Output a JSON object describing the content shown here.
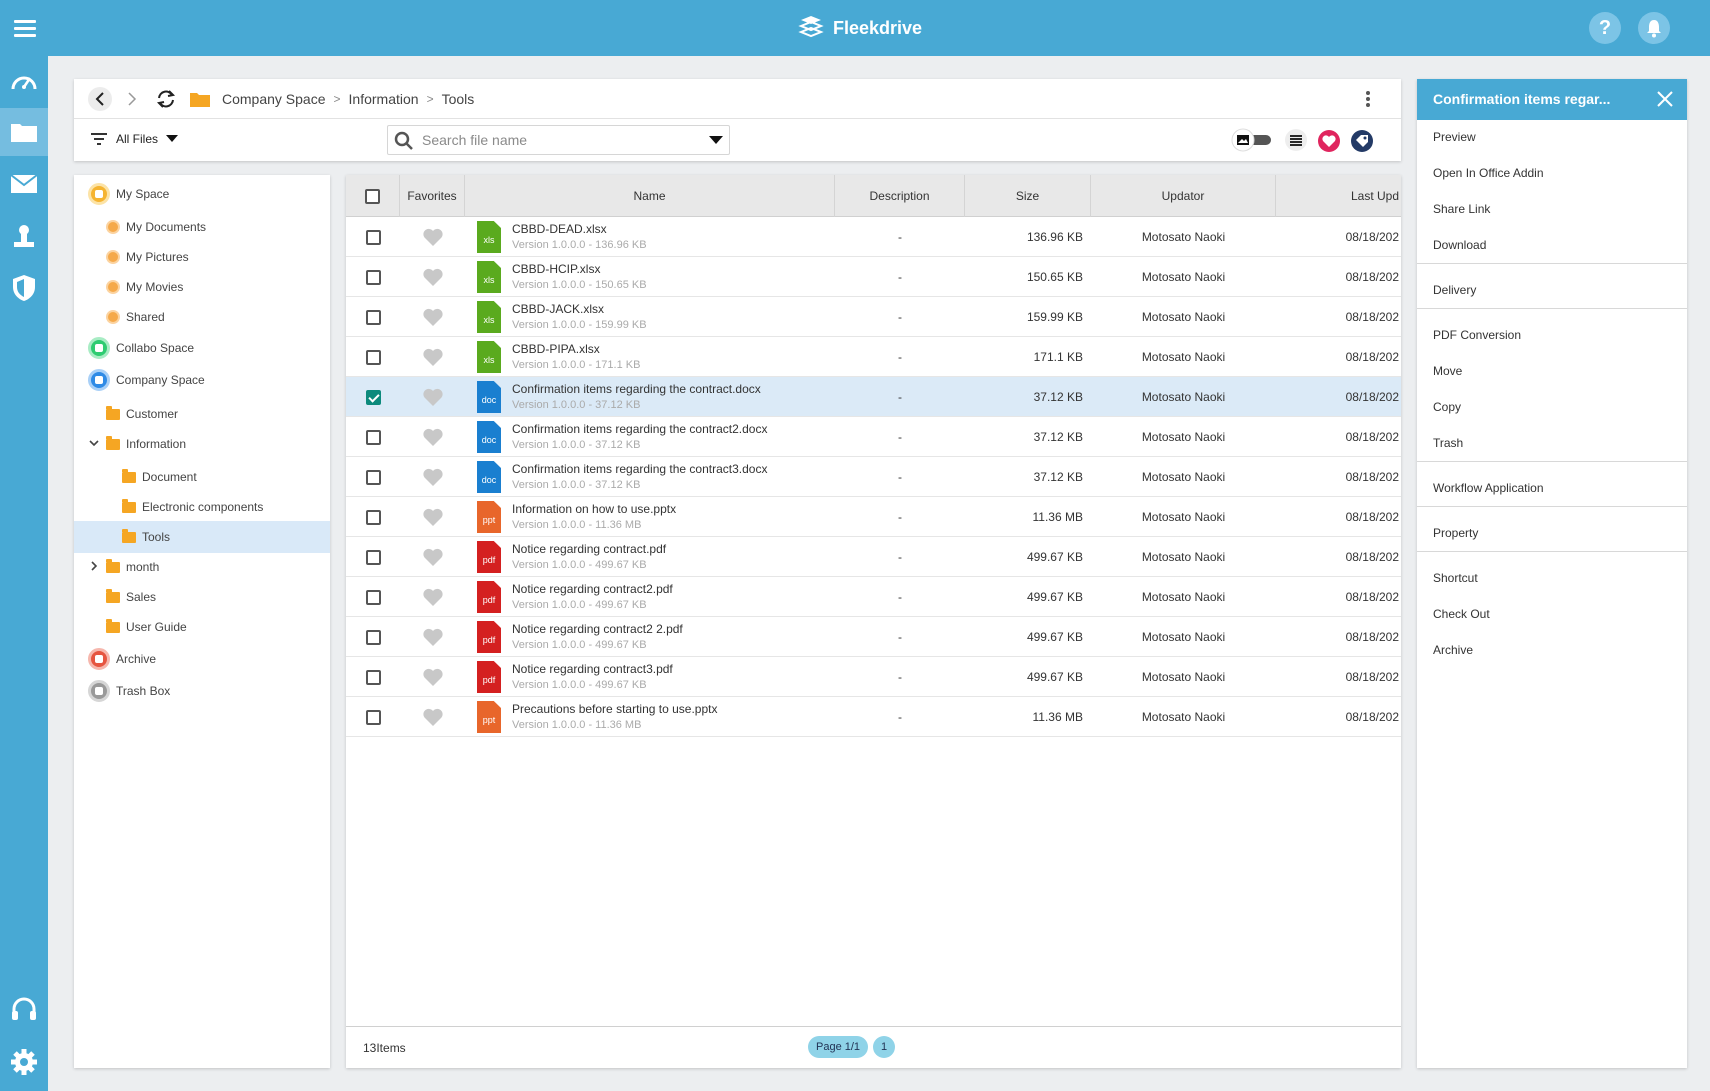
{
  "app": {
    "name": "Fleekdrive"
  },
  "breadcrumb": [
    "Company Space",
    "Information",
    "Tools"
  ],
  "filter": {
    "label": "All Files"
  },
  "search": {
    "placeholder": "Search file name"
  },
  "tree": [
    {
      "label": "My Space",
      "kind": "space-myspace",
      "level": 0
    },
    {
      "label": "My Documents",
      "kind": "personal",
      "level": 1
    },
    {
      "label": "My Pictures",
      "kind": "personal",
      "level": 1
    },
    {
      "label": "My Movies",
      "kind": "personal",
      "level": 1
    },
    {
      "label": "Shared",
      "kind": "personal",
      "level": 1
    },
    {
      "label": "Collabo Space",
      "kind": "space-collabo",
      "level": 0
    },
    {
      "label": "Company Space",
      "kind": "space-company",
      "level": 0
    },
    {
      "label": "Customer",
      "kind": "folder",
      "level": 1
    },
    {
      "label": "Information",
      "kind": "folder",
      "level": 1,
      "expanded": true
    },
    {
      "label": "Document",
      "kind": "folder",
      "level": 2
    },
    {
      "label": "Electronic components",
      "kind": "folder",
      "level": 2
    },
    {
      "label": "Tools",
      "kind": "folder",
      "level": 2,
      "selected": true
    },
    {
      "label": "month",
      "kind": "folder",
      "level": 1,
      "collapsed": true
    },
    {
      "label": "Sales",
      "kind": "folder",
      "level": 1
    },
    {
      "label": "User Guide",
      "kind": "folder",
      "level": 1
    },
    {
      "label": "Archive",
      "kind": "space-archive",
      "level": 0
    },
    {
      "label": "Trash Box",
      "kind": "space-trash",
      "level": 0
    }
  ],
  "table": {
    "columns": [
      "Favorites",
      "Name",
      "Description",
      "Size",
      "Updator",
      "Last Upd"
    ],
    "rows": [
      {
        "name": "CBBD-DEAD.xlsx",
        "version": "Version 1.0.0.0 - 136.96 KB",
        "type": "xls",
        "description": "-",
        "size": "136.96 KB",
        "updator": "Motosato Naoki",
        "updated": "08/18/202",
        "checked": false
      },
      {
        "name": "CBBD-HCIP.xlsx",
        "version": "Version 1.0.0.0 - 150.65 KB",
        "type": "xls",
        "description": "-",
        "size": "150.65 KB",
        "updator": "Motosato Naoki",
        "updated": "08/18/202",
        "checked": false
      },
      {
        "name": "CBBD-JACK.xlsx",
        "version": "Version 1.0.0.0 - 159.99 KB",
        "type": "xls",
        "description": "-",
        "size": "159.99 KB",
        "updator": "Motosato Naoki",
        "updated": "08/18/202",
        "checked": false
      },
      {
        "name": "CBBD-PIPA.xlsx",
        "version": "Version 1.0.0.0 - 171.1 KB",
        "type": "xls",
        "description": "-",
        "size": "171.1 KB",
        "updator": "Motosato Naoki",
        "updated": "08/18/202",
        "checked": false
      },
      {
        "name": "Confirmation items regarding the contract.docx",
        "version": "Version 1.0.0.0 - 37.12 KB",
        "type": "doc",
        "description": "-",
        "size": "37.12 KB",
        "updator": "Motosato Naoki",
        "updated": "08/18/202",
        "checked": true
      },
      {
        "name": "Confirmation items regarding the contract2.docx",
        "version": "Version 1.0.0.0 - 37.12 KB",
        "type": "doc",
        "description": "-",
        "size": "37.12 KB",
        "updator": "Motosato Naoki",
        "updated": "08/18/202",
        "checked": false
      },
      {
        "name": "Confirmation items regarding the contract3.docx",
        "version": "Version 1.0.0.0 - 37.12 KB",
        "type": "doc",
        "description": "-",
        "size": "37.12 KB",
        "updator": "Motosato Naoki",
        "updated": "08/18/202",
        "checked": false
      },
      {
        "name": "Information on how to use.pptx",
        "version": "Version 1.0.0.0 - 11.36 MB",
        "type": "ppt",
        "description": "-",
        "size": "11.36 MB",
        "updator": "Motosato Naoki",
        "updated": "08/18/202",
        "checked": false
      },
      {
        "name": "Notice regarding contract.pdf",
        "version": "Version 1.0.0.0 - 499.67 KB",
        "type": "pdf",
        "description": "-",
        "size": "499.67 KB",
        "updator": "Motosato Naoki",
        "updated": "08/18/202",
        "checked": false
      },
      {
        "name": "Notice regarding contract2.pdf",
        "version": "Version 1.0.0.0 - 499.67 KB",
        "type": "pdf",
        "description": "-",
        "size": "499.67 KB",
        "updator": "Motosato Naoki",
        "updated": "08/18/202",
        "checked": false
      },
      {
        "name": "Notice regarding contract2 2.pdf",
        "version": "Version 1.0.0.0 - 499.67 KB",
        "type": "pdf",
        "description": "-",
        "size": "499.67 KB",
        "updator": "Motosato Naoki",
        "updated": "08/18/202",
        "checked": false
      },
      {
        "name": "Notice regarding contract3.pdf",
        "version": "Version 1.0.0.0 - 499.67 KB",
        "type": "pdf",
        "description": "-",
        "size": "499.67 KB",
        "updator": "Motosato Naoki",
        "updated": "08/18/202",
        "checked": false
      },
      {
        "name": "Precautions before starting to use.pptx",
        "version": "Version 1.0.0.0 - 11.36 MB",
        "type": "ppt",
        "description": "-",
        "size": "11.36 MB",
        "updator": "Motosato Naoki",
        "updated": "08/18/202",
        "checked": false
      }
    ]
  },
  "footer": {
    "count": "13Items",
    "page": "Page 1/1",
    "page_number": "1"
  },
  "context_panel": {
    "title": "Confirmation items regar...",
    "groups": [
      [
        "Preview",
        "Open In Office Addin",
        "Share Link",
        "Download"
      ],
      [
        "Delivery"
      ],
      [
        "PDF Conversion",
        "Move",
        "Copy",
        "Trash"
      ],
      [
        "Workflow Application"
      ],
      [
        "Property"
      ],
      [
        "Shortcut",
        "Check Out",
        "Archive"
      ]
    ]
  },
  "colors": {
    "accent": "#48a9d4",
    "xls": "#5aaa1e",
    "doc": "#1a7fd0",
    "ppt": "#e8662b",
    "pdf": "#d42020",
    "selected_row": "#dbeaf7",
    "checkbox_on": "#0c8a7c"
  },
  "icons": {
    "rail": [
      "dashboard-icon",
      "folder-icon",
      "mail-icon",
      "user-icon",
      "shield-icon",
      "headset-icon",
      "gear-icon"
    ],
    "top": [
      "help-icon",
      "bell-icon"
    ],
    "toolbar": [
      "thumbnail-toggle-icon",
      "list-view-icon",
      "favorite-filter-icon",
      "tag-icon"
    ]
  }
}
